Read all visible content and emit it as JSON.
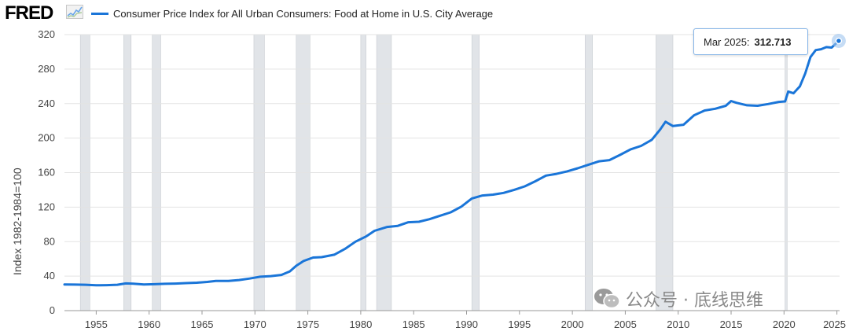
{
  "header": {
    "logo_text": "FRED",
    "series_label": "Consumer Price Index for All Urban Consumers: Food at Home in U.S. City Average",
    "series_color": "#1a75d8"
  },
  "tooltip": {
    "date": "Mar 2025:",
    "value": "312.713"
  },
  "watermark": {
    "text": "公众号 · 底线思维",
    "icon": "wechat-icon"
  },
  "chart_data": {
    "type": "line",
    "ylabel": "Index 1982-1984=100",
    "xlim": [
      1952.0,
      2025.25
    ],
    "ylim": [
      0,
      320
    ],
    "yticks": [
      0,
      40,
      80,
      120,
      160,
      200,
      240,
      280,
      320
    ],
    "xticks": [
      1955,
      1960,
      1965,
      1970,
      1975,
      1980,
      1985,
      1990,
      1995,
      2000,
      2005,
      2010,
      2015,
      2020,
      2025
    ],
    "grid": true,
    "legend_position": "top-left",
    "recessions": [
      [
        1953.5,
        1954.4
      ],
      [
        1957.6,
        1958.3
      ],
      [
        1960.3,
        1961.1
      ],
      [
        1969.9,
        1970.9
      ],
      [
        1973.9,
        1975.2
      ],
      [
        1980.0,
        1980.5
      ],
      [
        1981.5,
        1982.9
      ],
      [
        1990.5,
        1991.2
      ],
      [
        2001.2,
        2001.9
      ],
      [
        2007.9,
        2009.5
      ],
      [
        2020.1,
        2020.3
      ]
    ],
    "series": [
      {
        "color": "#1a75d8",
        "x": [
          1952.0,
          1953.0,
          1954.0,
          1955.0,
          1956.0,
          1957.0,
          1957.8,
          1958.5,
          1959.5,
          1960.5,
          1961.5,
          1962.5,
          1963.5,
          1964.5,
          1965.5,
          1966.3,
          1967.5,
          1968.5,
          1969.5,
          1970.5,
          1971.5,
          1972.5,
          1973.3,
          1973.9,
          1974.6,
          1975.5,
          1976.3,
          1977.5,
          1978.5,
          1979.5,
          1980.5,
          1981.3,
          1982.5,
          1983.5,
          1984.5,
          1985.5,
          1986.5,
          1987.5,
          1988.5,
          1989.5,
          1990.5,
          1991.5,
          1992.5,
          1993.5,
          1994.5,
          1995.5,
          1996.5,
          1997.5,
          1998.5,
          1999.5,
          2000.5,
          2001.5,
          2002.5,
          2003.5,
          2004.5,
          2005.5,
          2006.5,
          2007.5,
          2008.3,
          2008.8,
          2009.5,
          2010.5,
          2011.5,
          2012.5,
          2013.5,
          2014.5,
          2015.0,
          2015.5,
          2016.5,
          2017.5,
          2018.5,
          2019.5,
          2020.1,
          2020.4,
          2020.9,
          2021.5,
          2022.0,
          2022.5,
          2023.0,
          2023.5,
          2024.0,
          2024.5,
          2025.17
        ],
        "values": [
          30.4,
          30.2,
          30.0,
          29.4,
          29.5,
          30.0,
          31.5,
          31.2,
          30.4,
          30.6,
          31.1,
          31.4,
          31.9,
          32.4,
          33.3,
          34.5,
          34.4,
          35.5,
          37.2,
          39.3,
          40.0,
          41.4,
          45.5,
          52.0,
          57.5,
          61.5,
          62.0,
          64.8,
          71.5,
          80.0,
          86.0,
          92.5,
          97.0,
          98.3,
          102.5,
          103.0,
          106.0,
          110.0,
          114.0,
          120.5,
          130.0,
          133.5,
          134.5,
          136.5,
          140.0,
          144.0,
          150.0,
          156.5,
          158.5,
          161.5,
          165.0,
          169.0,
          173.0,
          174.5,
          180.5,
          187.0,
          191.0,
          198.0,
          210.0,
          219.0,
          214.0,
          215.5,
          226.5,
          232.0,
          234.0,
          237.5,
          243.0,
          241.0,
          238.0,
          237.5,
          239.5,
          242.0,
          242.5,
          254.0,
          252.0,
          260.0,
          275.0,
          294.0,
          302.0,
          303.0,
          305.5,
          305.0,
          312.713
        ]
      }
    ]
  }
}
